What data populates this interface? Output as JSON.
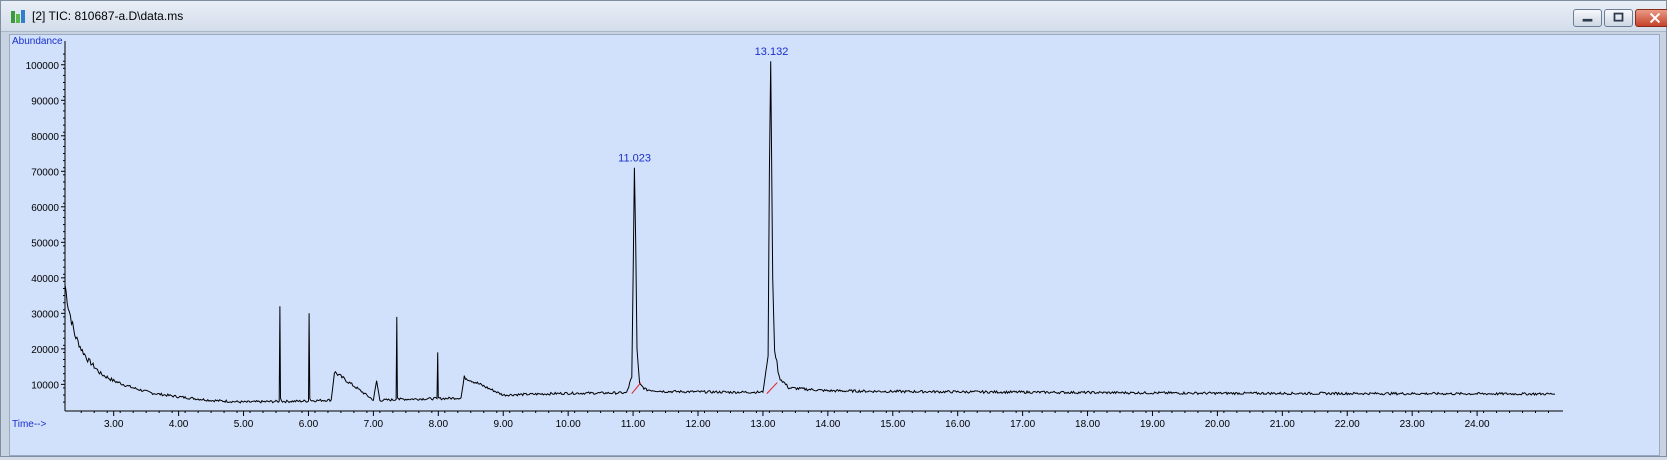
{
  "window": {
    "title": "[2] TIC: 810687-a.D\\data.ms",
    "buttons": [
      "minimize",
      "restore",
      "close"
    ]
  },
  "colors": {
    "plot_background": "#d1e0fb",
    "trace": "#000000",
    "peak_label": "#1a2fd0",
    "baseline_marker": "#e02020"
  },
  "chart_data": {
    "type": "line",
    "ylabel": "Abundance",
    "xlabel": "Time-->",
    "xlim": [
      2.25,
      25.2
    ],
    "ylim": [
      2500,
      105000
    ],
    "x_ticks": [
      "3.00",
      "4.00",
      "5.00",
      "6.00",
      "7.00",
      "8.00",
      "9.00",
      "10.00",
      "11.00",
      "12.00",
      "13.00",
      "14.00",
      "15.00",
      "16.00",
      "17.00",
      "18.00",
      "19.00",
      "20.00",
      "21.00",
      "22.00",
      "23.00",
      "24.00"
    ],
    "y_ticks": [
      "10000",
      "20000",
      "30000",
      "40000",
      "50000",
      "60000",
      "70000",
      "80000",
      "90000",
      "100000"
    ],
    "series": [
      {
        "x": [
          2.25,
          2.3,
          2.4,
          2.5,
          2.6,
          2.8,
          3.0,
          3.3,
          3.6,
          4.0,
          4.5,
          5.0,
          5.55,
          5.56,
          5.57,
          5.6,
          6.0,
          6.01,
          6.02,
          6.05,
          6.35,
          6.4,
          7.0,
          7.05,
          7.1,
          7.35,
          7.36,
          7.37,
          7.4,
          7.98,
          7.99,
          8.0,
          8.03,
          8.35,
          8.4,
          9.0,
          10.0,
          10.9,
          10.98,
          11.0,
          11.02,
          11.04,
          11.06,
          11.1,
          11.2,
          11.5,
          12.0,
          12.5,
          13.0,
          13.08,
          13.1,
          13.12,
          13.13,
          13.15,
          13.18,
          13.25,
          13.4,
          14.0,
          15.0,
          17.0,
          20.0,
          23.0,
          25.2
        ],
        "y": [
          38000,
          32000,
          24000,
          20000,
          17000,
          13000,
          11000,
          9000,
          7500,
          6500,
          5500,
          5000,
          5200,
          32000,
          6000,
          5200,
          5300,
          30000,
          6000,
          5400,
          5600,
          13500,
          5600,
          11000,
          5500,
          5700,
          29000,
          6500,
          5800,
          6000,
          19000,
          6200,
          6000,
          6200,
          12000,
          7000,
          7500,
          7600,
          12000,
          40000,
          71000,
          50000,
          20000,
          10000,
          8500,
          8000,
          7900,
          7800,
          7800,
          18000,
          70000,
          101000,
          80000,
          40000,
          20000,
          12000,
          9000,
          8200,
          8000,
          7800,
          7500,
          7400,
          7300
        ]
      }
    ],
    "annotations": [
      {
        "label": "11.023",
        "x": 11.023,
        "y": 71000
      },
      {
        "label": "13.132",
        "x": 13.132,
        "y": 101000
      }
    ]
  }
}
